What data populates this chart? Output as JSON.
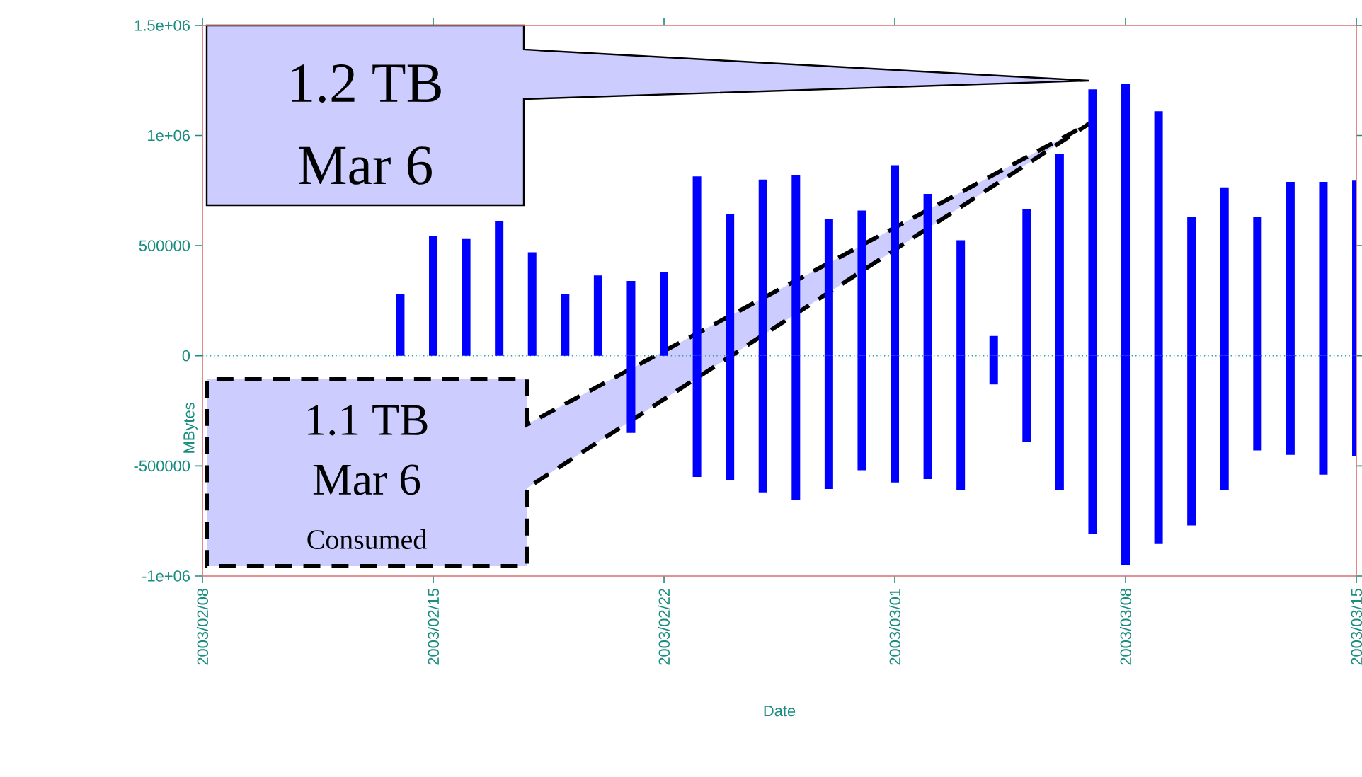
{
  "chart_data": {
    "type": "bar",
    "stacked": true,
    "xlabel": "Date",
    "ylabel": "MBytes",
    "x": [
      "2003-02-14",
      "2003-02-15",
      "2003-02-16",
      "2003-02-17",
      "2003-02-18",
      "2003-02-19",
      "2003-02-20",
      "2003-02-21",
      "2003-02-22",
      "2003-02-23",
      "2003-02-24",
      "2003-02-25",
      "2003-02-26",
      "2003-02-27",
      "2003-02-28",
      "2003-03-01",
      "2003-03-02",
      "2003-03-03",
      "2003-03-04",
      "2003-03-05",
      "2003-03-06",
      "2003-03-07",
      "2003-03-08",
      "2003-03-09",
      "2003-03-10",
      "2003-03-11",
      "2003-03-12",
      "2003-03-13",
      "2003-03-14",
      "2003-03-15"
    ],
    "series": [
      {
        "color": "#0000ff",
        "values": [
          280000,
          545000,
          530000,
          610000,
          470000,
          280000,
          365000,
          340000,
          380000,
          815000,
          645000,
          800000,
          820000,
          620000,
          660000,
          865000,
          735000,
          525000,
          90000,
          665000,
          915000,
          1210000,
          1235000,
          1110000,
          630000,
          765000,
          630000,
          790000,
          790000,
          795000
        ]
      },
      {
        "color": "#0000ff",
        "values": [
          null,
          null,
          null,
          null,
          null,
          null,
          null,
          -350000,
          null,
          -550000,
          -565000,
          -620000,
          -655000,
          -605000,
          -520000,
          -575000,
          -560000,
          -610000,
          -130000,
          -390000,
          -610000,
          -810000,
          -950000,
          -855000,
          -770000,
          -610000,
          -430000,
          -450000,
          -540000,
          -455000
        ]
      }
    ],
    "xlim": [
      "2003-02-08",
      "2003-03-15"
    ],
    "xticks": [
      {
        "value": "2003-02-08",
        "label": "2003/02/08"
      },
      {
        "value": "2003-02-15",
        "label": "2003/02/15"
      },
      {
        "value": "2003-02-22",
        "label": "2003/02/22"
      },
      {
        "value": "2003-03-01",
        "label": "2003/03/01"
      },
      {
        "value": "2003-03-08",
        "label": "2003/03/08"
      },
      {
        "value": "2003-03-15",
        "label": "2003/03/15"
      }
    ],
    "ylim": [
      -1000000,
      1500000
    ],
    "yticks": [
      {
        "value": -1000000,
        "label": "-1e+06"
      },
      -500000,
      0,
      500000,
      {
        "value": 1000000,
        "label": "1e+06"
      },
      {
        "value": 1500000,
        "label": "1.5e+06"
      }
    ],
    "ref_lines": [
      {
        "axis": "y",
        "value": 0,
        "color": "#20a0a0",
        "line_style": "dotted"
      }
    ],
    "annotations": [
      "1.2 TB",
      "Mar 6",
      "1.1 TB",
      "Mar 6",
      "Consumed"
    ]
  }
}
